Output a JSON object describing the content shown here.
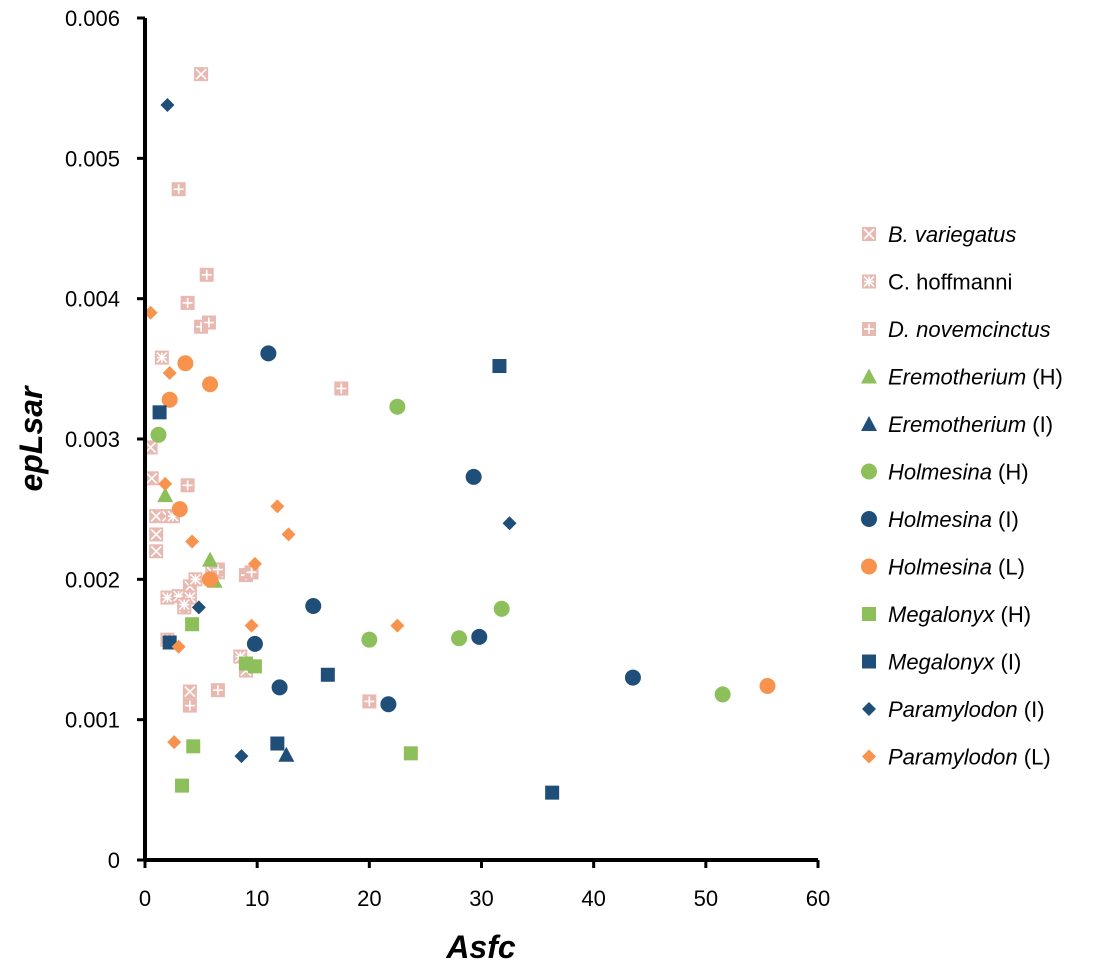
{
  "chart_data": {
    "type": "scatter",
    "title": "",
    "xlabel": "Asfc",
    "ylabel": "epLsar",
    "xlim": [
      0,
      60
    ],
    "ylim": [
      0,
      0.006
    ],
    "x_ticks": [
      "0",
      "10",
      "20",
      "30",
      "40",
      "50",
      "60"
    ],
    "y_ticks": [
      "0",
      "0.001",
      "0.002",
      "0.003",
      "0.004",
      "0.005",
      "0.006"
    ],
    "grid": false,
    "legend_position": "right",
    "colors": {
      "pink": "#e7b9b1",
      "green": "#8dbf5b",
      "navy": "#1f4e79",
      "orange": "#f7934c"
    },
    "series": [
      {
        "name_main": "B. variegatus",
        "name_suffix": "",
        "italic": true,
        "marker": "square-x",
        "color": "#e7b9b1",
        "points": [
          [
            5.0,
            0.0056
          ],
          [
            0.5,
            0.00294
          ],
          [
            0.6,
            0.00272
          ],
          [
            1.0,
            0.00245
          ],
          [
            1.0,
            0.00232
          ],
          [
            1.0,
            0.0022
          ],
          [
            2.0,
            0.00245
          ],
          [
            4.0,
            0.00195
          ],
          [
            3.5,
            0.0018
          ],
          [
            6.5,
            0.00205
          ],
          [
            9.0,
            0.00135
          ],
          [
            4.0,
            0.0012
          ]
        ]
      },
      {
        "name_main": "C. hoffmanni",
        "name_suffix": "",
        "italic": false,
        "marker": "square-star",
        "color": "#e7b9b1",
        "points": [
          [
            1.5,
            0.00358
          ],
          [
            2.5,
            0.00245
          ],
          [
            2.0,
            0.00187
          ],
          [
            3.0,
            0.00188
          ],
          [
            4.0,
            0.00187
          ],
          [
            4.5,
            0.002
          ],
          [
            6.0,
            0.00205
          ],
          [
            8.5,
            0.00145
          ],
          [
            9.0,
            0.0014
          ],
          [
            2.0,
            0.00157
          ],
          [
            3.5,
            0.00182
          ]
        ]
      },
      {
        "name_main": "D. novemcinctus",
        "name_suffix": "",
        "italic": true,
        "marker": "square-plus",
        "color": "#e7b9b1",
        "points": [
          [
            3.0,
            0.00478
          ],
          [
            5.5,
            0.00417
          ],
          [
            3.8,
            0.00397
          ],
          [
            5.0,
            0.0038
          ],
          [
            5.7,
            0.00383
          ],
          [
            17.5,
            0.00336
          ],
          [
            3.8,
            0.00267
          ],
          [
            6.5,
            0.00207
          ],
          [
            9.0,
            0.00203
          ],
          [
            9.5,
            0.00205
          ],
          [
            6.5,
            0.00121
          ],
          [
            4.0,
            0.0011
          ],
          [
            20.0,
            0.00113
          ]
        ]
      },
      {
        "name_main": "Eremotherium",
        "name_suffix": " (H)",
        "italic": true,
        "marker": "triangle",
        "color": "#8dbf5b",
        "points": [
          [
            1.8,
            0.0026
          ],
          [
            5.8,
            0.00214
          ],
          [
            6.2,
            0.00199
          ]
        ]
      },
      {
        "name_main": "Eremotherium",
        "name_suffix": " (I)",
        "italic": true,
        "marker": "triangle",
        "color": "#1f4e79",
        "points": [
          [
            12.6,
            0.00075
          ]
        ]
      },
      {
        "name_main": "Holmesina",
        "name_suffix": " (H)",
        "italic": true,
        "marker": "circle",
        "color": "#8dbf5b",
        "points": [
          [
            1.2,
            0.00303
          ],
          [
            22.5,
            0.00323
          ],
          [
            20.0,
            0.00157
          ],
          [
            28.0,
            0.00158
          ],
          [
            31.8,
            0.00179
          ],
          [
            51.5,
            0.00118
          ]
        ]
      },
      {
        "name_main": "Holmesina",
        "name_suffix": " (I)",
        "italic": true,
        "marker": "circle",
        "color": "#1f4e79",
        "points": [
          [
            11.0,
            0.00361
          ],
          [
            29.3,
            0.00273
          ],
          [
            15.0,
            0.00181
          ],
          [
            9.8,
            0.00154
          ],
          [
            12.0,
            0.00123
          ],
          [
            21.7,
            0.00111
          ],
          [
            29.8,
            0.00159
          ],
          [
            43.5,
            0.0013
          ]
        ]
      },
      {
        "name_main": "Holmesina",
        "name_suffix": " (L)",
        "italic": true,
        "marker": "circle",
        "color": "#f7934c",
        "points": [
          [
            3.6,
            0.00354
          ],
          [
            5.8,
            0.00339
          ],
          [
            2.2,
            0.00328
          ],
          [
            3.1,
            0.0025
          ],
          [
            5.8,
            0.002
          ],
          [
            55.5,
            0.00124
          ]
        ]
      },
      {
        "name_main": "Megalonyx",
        "name_suffix": " (H)",
        "italic": true,
        "marker": "square",
        "color": "#8dbf5b",
        "points": [
          [
            4.2,
            0.00168
          ],
          [
            9.0,
            0.0014
          ],
          [
            9.8,
            0.00138
          ],
          [
            4.3,
            0.00081
          ],
          [
            3.3,
            0.00053
          ],
          [
            23.7,
            0.00076
          ]
        ]
      },
      {
        "name_main": "Megalonyx",
        "name_suffix": " (I)",
        "italic": true,
        "marker": "square",
        "color": "#1f4e79",
        "points": [
          [
            1.3,
            0.00319
          ],
          [
            2.2,
            0.00155
          ],
          [
            31.6,
            0.00352
          ],
          [
            16.3,
            0.00132
          ],
          [
            11.8,
            0.00083
          ],
          [
            36.3,
            0.00048
          ]
        ]
      },
      {
        "name_main": "Paramylodon",
        "name_suffix": " (I)",
        "italic": true,
        "marker": "diamond",
        "color": "#1f4e79",
        "points": [
          [
            2.0,
            0.00538
          ],
          [
            4.8,
            0.0018
          ],
          [
            32.5,
            0.0024
          ],
          [
            8.6,
            0.00074
          ]
        ]
      },
      {
        "name_main": "Paramylodon",
        "name_suffix": " (L)",
        "italic": true,
        "marker": "diamond",
        "color": "#f7934c",
        "points": [
          [
            0.5,
            0.0039
          ],
          [
            2.2,
            0.00347
          ],
          [
            1.8,
            0.00268
          ],
          [
            4.2,
            0.00227
          ],
          [
            11.8,
            0.00252
          ],
          [
            12.8,
            0.00232
          ],
          [
            9.8,
            0.00211
          ],
          [
            9.5,
            0.00167
          ],
          [
            3.0,
            0.00152
          ],
          [
            22.5,
            0.00167
          ],
          [
            2.6,
            0.00084
          ]
        ]
      }
    ]
  }
}
